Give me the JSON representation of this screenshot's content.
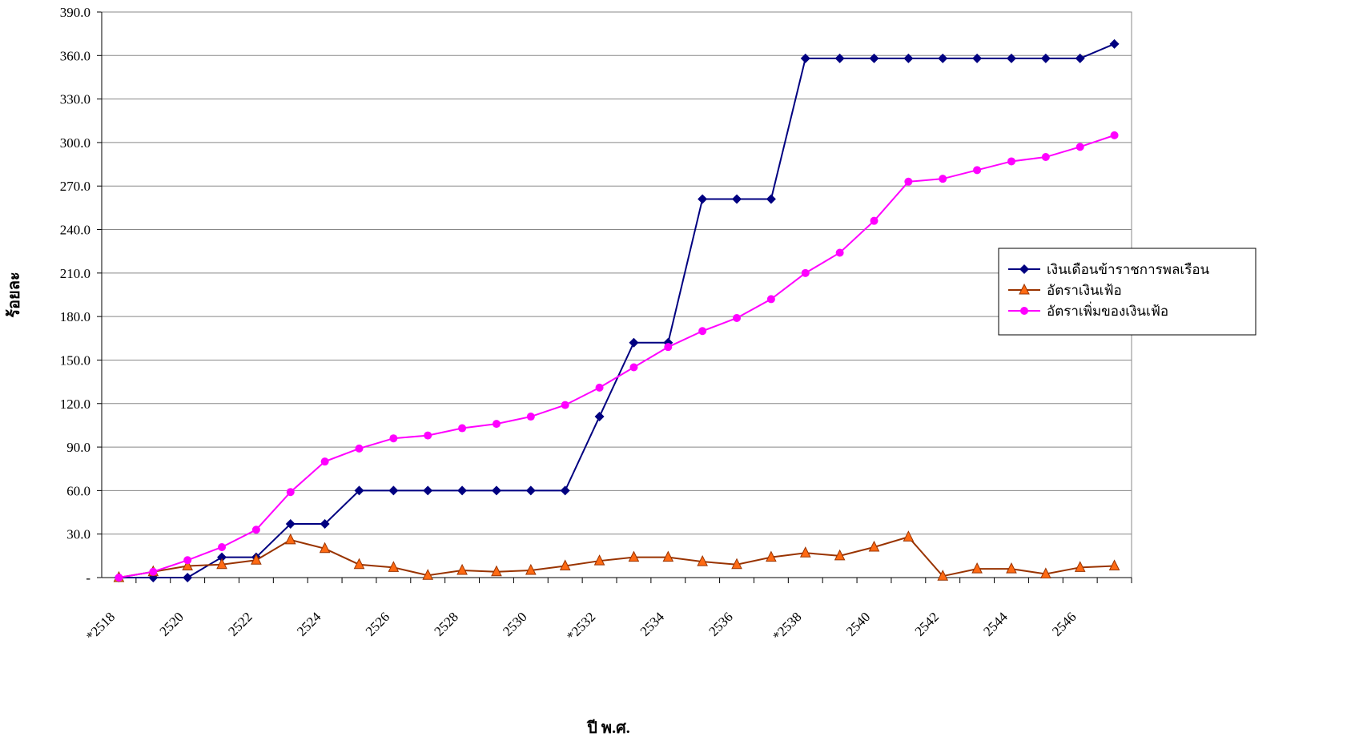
{
  "chart_data": {
    "type": "line",
    "x_label": "ปี พ.ศ.",
    "y_label": "ร้อยละ",
    "categories": [
      "*2518",
      null,
      "2520",
      null,
      "2522",
      null,
      "2524",
      null,
      "2526",
      null,
      "2528",
      null,
      "2530",
      null,
      "*2532",
      null,
      "2534",
      null,
      "2536",
      null,
      "*2538",
      null,
      "2540",
      null,
      "2542",
      null,
      "2544",
      null,
      "2546",
      null
    ],
    "series": [
      {
        "name": "เงินเดือนข้าราชการพลเรือน",
        "color": "#000080",
        "marker": "diamond",
        "values": [
          0,
          0,
          0,
          14,
          14,
          37,
          37,
          60,
          60,
          60,
          60,
          60,
          60,
          60,
          111,
          162,
          162,
          261,
          261,
          261,
          358,
          358,
          358,
          358,
          358,
          358,
          358,
          358,
          358,
          368
        ]
      },
      {
        "name": "อัตราเงินเฟ้อ",
        "color": "#993300",
        "marker": "triangle",
        "values": [
          0,
          4,
          8,
          9,
          12,
          26,
          20,
          9,
          7,
          1.5,
          5,
          4,
          5,
          8,
          11.5,
          14,
          14,
          11,
          9,
          14,
          17,
          15,
          21,
          28,
          1,
          6,
          6,
          2.5,
          7,
          8
        ]
      },
      {
        "name": "อัตราเพิ่มของเงินเฟ้อ",
        "color": "#ff00ff",
        "marker": "circle",
        "values": [
          0,
          4,
          12,
          21,
          33,
          59,
          80,
          89,
          96,
          98,
          103,
          106,
          111,
          119,
          131,
          145,
          159,
          170,
          179,
          192,
          210,
          224,
          246,
          273,
          275,
          281,
          287,
          290,
          297,
          305
        ]
      }
    ],
    "ylim": [
      0,
      390
    ],
    "yticks": [
      {
        "value": 0,
        "label": "-"
      },
      {
        "value": 30,
        "label": "30.0"
      },
      {
        "value": 60,
        "label": "60.0"
      },
      {
        "value": 90,
        "label": "90.0"
      },
      {
        "value": 120,
        "label": "120.0"
      },
      {
        "value": 150,
        "label": "150.0"
      },
      {
        "value": 180,
        "label": "180.0"
      },
      {
        "value": 210,
        "label": "210.0"
      },
      {
        "value": 240,
        "label": "240.0"
      },
      {
        "value": 270,
        "label": "270.0"
      },
      {
        "value": 300,
        "label": "300.0"
      },
      {
        "value": 330,
        "label": "330.0"
      },
      {
        "value": 360,
        "label": "360.0"
      },
      {
        "value": 390,
        "label": "390.0"
      }
    ],
    "grid": true,
    "legend": "right"
  }
}
